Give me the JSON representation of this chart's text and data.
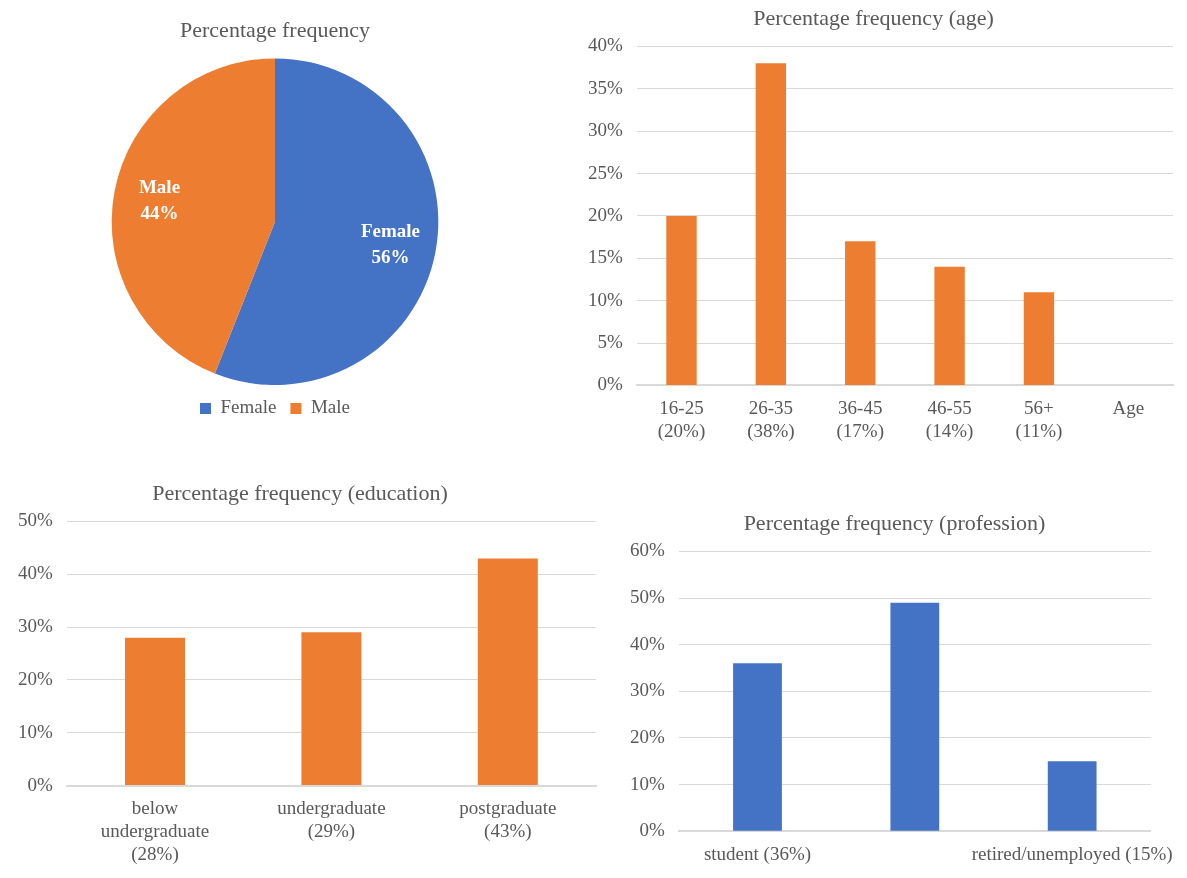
{
  "chart_data": [
    {
      "type": "pie",
      "title": "Percentage frequency",
      "categories": [
        "Female",
        "Male"
      ],
      "values": [
        56,
        44
      ],
      "colors": [
        "#4472c4",
        "#ed7d31"
      ],
      "value_labels": [
        "56%",
        "44%"
      ],
      "data_labels": true,
      "legend": "bottom"
    },
    {
      "type": "bar",
      "title": "Percentage frequency (age)",
      "categories": [
        "16-25 (20%)",
        "26-35 (38%)",
        "36-45 (17%)",
        "46-55 (14%)",
        "56+ (11%)",
        "Age"
      ],
      "values": [
        20,
        38,
        17,
        14,
        11,
        null
      ],
      "color": "#ed7d31",
      "ylim": [
        0,
        40
      ],
      "yticks": [
        {
          "value": 0,
          "label": "0%"
        },
        {
          "value": 5,
          "label": "5%"
        },
        {
          "value": 10,
          "label": "10%"
        },
        {
          "value": 15,
          "label": "15%"
        },
        {
          "value": 20,
          "label": "20%"
        },
        {
          "value": 25,
          "label": "25%"
        },
        {
          "value": 30,
          "label": "30%"
        },
        {
          "value": 35,
          "label": "35%"
        },
        {
          "value": 40,
          "label": "40%"
        }
      ],
      "grid": "y"
    },
    {
      "type": "bar",
      "title": "Percentage frequency (education)",
      "categories": [
        "below undergraduate (28%)",
        "undergraduate (29%)",
        "postgraduate (43%)"
      ],
      "values": [
        28,
        29,
        43
      ],
      "color": "#ed7d31",
      "ylim": [
        0,
        50
      ],
      "yticks": [
        {
          "value": 0,
          "label": "0%"
        },
        {
          "value": 10,
          "label": "10%"
        },
        {
          "value": 20,
          "label": "20%"
        },
        {
          "value": 30,
          "label": "30%"
        },
        {
          "value": 40,
          "label": "40%"
        },
        {
          "value": 50,
          "label": "50%"
        }
      ],
      "grid": "y"
    },
    {
      "type": "bar",
      "title": "Percentage frequency (profession)",
      "categories": [
        "student (36%)",
        null,
        "retired/unemployed (15%)"
      ],
      "values": [
        36,
        49,
        15
      ],
      "color": "#4472c4",
      "ylim": [
        0,
        60
      ],
      "yticks": [
        {
          "value": 0,
          "label": "0%"
        },
        {
          "value": 10,
          "label": "10%"
        },
        {
          "value": 20,
          "label": "20%"
        },
        {
          "value": 30,
          "label": "30%"
        },
        {
          "value": 40,
          "label": "40%"
        },
        {
          "value": 50,
          "label": "50%"
        },
        {
          "value": 60,
          "label": "60%"
        }
      ],
      "grid": "y"
    }
  ]
}
